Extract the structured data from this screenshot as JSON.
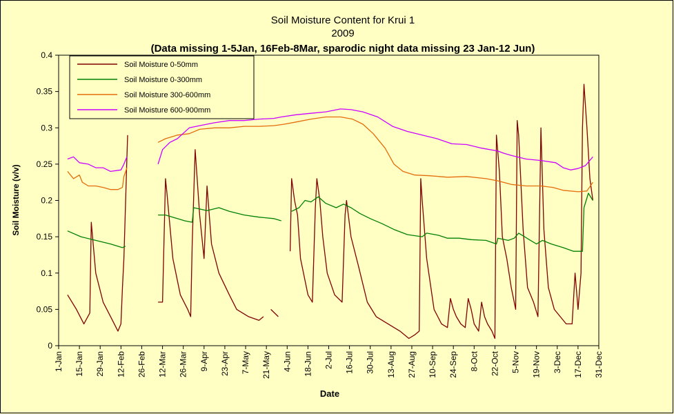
{
  "chart_data": {
    "type": "line",
    "title": "Soil Moisture Content for Krui 1",
    "subtitle": "2009",
    "note": "(Data missing 1-5Jan, 16Feb-8Mar, sparodic night data missing 23 Jan-12 Jun)",
    "xlabel": "Date",
    "ylabel": "Soil Moisture (v/v)",
    "ylim": [
      0,
      0.4
    ],
    "yticks": [
      "0",
      "0.05",
      "0.1",
      "0.15",
      "0.2",
      "0.25",
      "0.3",
      "0.35",
      "0.4"
    ],
    "xticks": [
      "1-Jan",
      "15-Jan",
      "29-Jan",
      "12-Feb",
      "26-Feb",
      "12-Mar",
      "26-Mar",
      "9-Apr",
      "23-Apr",
      "7-May",
      "21-May",
      "4-Jun",
      "18-Jun",
      "2-Jul",
      "16-Jul",
      "30-Jul",
      "13-Aug",
      "27-Aug",
      "10-Sep",
      "24-Sep",
      "8-Oct",
      "22-Oct",
      "5-Nov",
      "19-Nov",
      "3-Dec",
      "17-Dec",
      "31-Dec"
    ],
    "legend_position": "top-left",
    "grid": false,
    "series": [
      {
        "name": "Soil Moisture 0-50mm",
        "color": "#800000",
        "points": [
          [
            6,
            0.07
          ],
          [
            12,
            0.05
          ],
          [
            17,
            0.03
          ],
          [
            21,
            0.045
          ],
          [
            22,
            0.17
          ],
          [
            25,
            0.1
          ],
          [
            30,
            0.06
          ],
          [
            35,
            0.04
          ],
          [
            40,
            0.02
          ],
          [
            42,
            0.03
          ],
          [
            43,
            0.08
          ],
          [
            44,
            0.12
          ],
          [
            46,
            0.26
          ],
          [
            46.5,
            0.29
          ],
          [
            null,
            null
          ],
          [
            67,
            0.06
          ],
          [
            70,
            0.06
          ],
          [
            72,
            0.23
          ],
          [
            73,
            0.21
          ],
          [
            77,
            0.12
          ],
          [
            82,
            0.07
          ],
          [
            87,
            0.05
          ],
          [
            89,
            0.04
          ],
          [
            90,
            0.14
          ],
          [
            92,
            0.27
          ],
          [
            95,
            0.18
          ],
          [
            98,
            0.12
          ],
          [
            100,
            0.22
          ],
          [
            103,
            0.14
          ],
          [
            108,
            0.1
          ],
          [
            115,
            0.07
          ],
          [
            120,
            0.05
          ],
          [
            128,
            0.04
          ],
          [
            135,
            0.035
          ],
          [
            138,
            0.04
          ],
          [
            null,
            null
          ],
          [
            143,
            0.05
          ],
          [
            148,
            0.04
          ],
          [
            null,
            null
          ],
          [
            156,
            0.13
          ],
          [
            157,
            0.23
          ],
          [
            159,
            0.2
          ],
          [
            161,
            0.18
          ],
          [
            163,
            0.12
          ],
          [
            168,
            0.07
          ],
          [
            171,
            0.06
          ],
          [
            173,
            0.19
          ],
          [
            174,
            0.23
          ],
          [
            176,
            0.2
          ],
          [
            178,
            0.15
          ],
          [
            181,
            0.1
          ],
          [
            186,
            0.07
          ],
          [
            191,
            0.06
          ],
          [
            193,
            0.18
          ],
          [
            194,
            0.2
          ],
          [
            197,
            0.15
          ],
          [
            202,
            0.11
          ],
          [
            208,
            0.06
          ],
          [
            214,
            0.04
          ],
          [
            222,
            0.03
          ],
          [
            230,
            0.02
          ],
          [
            236,
            0.01
          ],
          [
            240,
            0.015
          ],
          [
            243,
            0.02
          ],
          [
            244,
            0.23
          ],
          [
            245,
            0.2
          ],
          [
            248,
            0.12
          ],
          [
            253,
            0.05
          ],
          [
            258,
            0.03
          ],
          [
            262,
            0.025
          ],
          [
            264,
            0.065
          ],
          [
            266,
            0.05
          ],
          [
            268,
            0.04
          ],
          [
            271,
            0.03
          ],
          [
            274,
            0.025
          ],
          [
            276,
            0.065
          ],
          [
            278,
            0.05
          ],
          [
            280,
            0.03
          ],
          [
            283,
            0.02
          ],
          [
            285,
            0.06
          ],
          [
            287,
            0.04
          ],
          [
            289,
            0.03
          ],
          [
            292,
            0.02
          ],
          [
            294,
            0.01
          ],
          [
            295,
            0.29
          ],
          [
            297,
            0.24
          ],
          [
            299,
            0.15
          ],
          [
            302,
            0.12
          ],
          [
            305,
            0.08
          ],
          [
            308,
            0.05
          ],
          [
            309,
            0.31
          ],
          [
            310,
            0.29
          ],
          [
            313,
            0.16
          ],
          [
            316,
            0.08
          ],
          [
            320,
            0.06
          ],
          [
            323,
            0.04
          ],
          [
            325,
            0.3
          ],
          [
            327,
            0.16
          ],
          [
            330,
            0.08
          ],
          [
            334,
            0.05
          ],
          [
            338,
            0.04
          ],
          [
            342,
            0.03
          ],
          [
            346,
            0.03
          ],
          [
            348,
            0.1
          ],
          [
            350,
            0.05
          ],
          [
            352,
            0.1
          ],
          [
            353,
            0.3
          ],
          [
            354,
            0.36
          ],
          [
            356,
            0.3
          ],
          [
            358,
            0.23
          ],
          [
            360,
            0.2
          ]
        ]
      },
      {
        "name": "Soil Moisture 0-300mm",
        "color": "#008000",
        "points": [
          [
            6,
            0.158
          ],
          [
            15,
            0.15
          ],
          [
            25,
            0.145
          ],
          [
            35,
            0.14
          ],
          [
            43,
            0.135
          ],
          [
            45,
            0.137
          ],
          [
            null,
            null
          ],
          [
            67,
            0.18
          ],
          [
            72,
            0.18
          ],
          [
            80,
            0.175
          ],
          [
            85,
            0.172
          ],
          [
            90,
            0.17
          ],
          [
            91,
            0.19
          ],
          [
            100,
            0.186
          ],
          [
            108,
            0.19
          ],
          [
            115,
            0.185
          ],
          [
            125,
            0.18
          ],
          [
            135,
            0.177
          ],
          [
            145,
            0.175
          ],
          [
            150,
            0.172
          ],
          [
            null,
            null
          ],
          [
            157,
            0.185
          ],
          [
            162,
            0.19
          ],
          [
            166,
            0.2
          ],
          [
            170,
            0.198
          ],
          [
            175,
            0.205
          ],
          [
            180,
            0.196
          ],
          [
            187,
            0.19
          ],
          [
            192,
            0.195
          ],
          [
            197,
            0.19
          ],
          [
            203,
            0.182
          ],
          [
            210,
            0.175
          ],
          [
            218,
            0.168
          ],
          [
            226,
            0.16
          ],
          [
            235,
            0.153
          ],
          [
            245,
            0.15
          ],
          [
            248,
            0.155
          ],
          [
            256,
            0.152
          ],
          [
            262,
            0.148
          ],
          [
            270,
            0.148
          ],
          [
            278,
            0.146
          ],
          [
            288,
            0.145
          ],
          [
            295,
            0.14
          ],
          [
            296,
            0.148
          ],
          [
            303,
            0.145
          ],
          [
            307,
            0.148
          ],
          [
            310,
            0.155
          ],
          [
            314,
            0.15
          ],
          [
            318,
            0.145
          ],
          [
            322,
            0.14
          ],
          [
            326,
            0.145
          ],
          [
            332,
            0.14
          ],
          [
            340,
            0.135
          ],
          [
            347,
            0.13
          ],
          [
            353,
            0.13
          ],
          [
            354,
            0.19
          ],
          [
            357,
            0.21
          ],
          [
            360,
            0.2
          ]
        ]
      },
      {
        "name": "Soil Moisture 300-600mm",
        "color": "#e46c0a",
        "points": [
          [
            6,
            0.24
          ],
          [
            10,
            0.23
          ],
          [
            14,
            0.235
          ],
          [
            16,
            0.225
          ],
          [
            20,
            0.22
          ],
          [
            25,
            0.22
          ],
          [
            30,
            0.218
          ],
          [
            35,
            0.215
          ],
          [
            40,
            0.215
          ],
          [
            43,
            0.218
          ],
          [
            44,
            0.233
          ],
          [
            46,
            0.245
          ],
          [
            null,
            null
          ],
          [
            67,
            0.28
          ],
          [
            72,
            0.285
          ],
          [
            80,
            0.29
          ],
          [
            88,
            0.292
          ],
          [
            95,
            0.298
          ],
          [
            105,
            0.3
          ],
          [
            115,
            0.3
          ],
          [
            125,
            0.302
          ],
          [
            135,
            0.302
          ],
          [
            145,
            0.303
          ],
          [
            152,
            0.305
          ],
          [
            160,
            0.308
          ],
          [
            170,
            0.312
          ],
          [
            180,
            0.315
          ],
          [
            190,
            0.315
          ],
          [
            198,
            0.312
          ],
          [
            205,
            0.305
          ],
          [
            212,
            0.292
          ],
          [
            220,
            0.272
          ],
          [
            226,
            0.25
          ],
          [
            232,
            0.24
          ],
          [
            240,
            0.235
          ],
          [
            250,
            0.234
          ],
          [
            262,
            0.232
          ],
          [
            275,
            0.233
          ],
          [
            288,
            0.23
          ],
          [
            296,
            0.227
          ],
          [
            305,
            0.222
          ],
          [
            315,
            0.22
          ],
          [
            325,
            0.22
          ],
          [
            333,
            0.218
          ],
          [
            340,
            0.214
          ],
          [
            350,
            0.212
          ],
          [
            356,
            0.213
          ],
          [
            360,
            0.225
          ]
        ]
      },
      {
        "name": "Soil Moisture 600-900mm",
        "color": "#cc00ff",
        "points": [
          [
            6,
            0.257
          ],
          [
            10,
            0.26
          ],
          [
            14,
            0.252
          ],
          [
            20,
            0.25
          ],
          [
            25,
            0.245
          ],
          [
            30,
            0.245
          ],
          [
            35,
            0.24
          ],
          [
            42,
            0.242
          ],
          [
            44,
            0.25
          ],
          [
            46,
            0.26
          ],
          [
            null,
            null
          ],
          [
            67,
            0.25
          ],
          [
            70,
            0.27
          ],
          [
            75,
            0.28
          ],
          [
            80,
            0.285
          ],
          [
            88,
            0.3
          ],
          [
            95,
            0.303
          ],
          [
            105,
            0.307
          ],
          [
            115,
            0.31
          ],
          [
            125,
            0.31
          ],
          [
            135,
            0.312
          ],
          [
            145,
            0.313
          ],
          [
            150,
            0.315
          ],
          [
            160,
            0.318
          ],
          [
            170,
            0.32
          ],
          [
            180,
            0.322
          ],
          [
            190,
            0.326
          ],
          [
            197,
            0.325
          ],
          [
            205,
            0.322
          ],
          [
            215,
            0.315
          ],
          [
            225,
            0.302
          ],
          [
            235,
            0.295
          ],
          [
            245,
            0.29
          ],
          [
            255,
            0.285
          ],
          [
            265,
            0.278
          ],
          [
            275,
            0.277
          ],
          [
            285,
            0.272
          ],
          [
            296,
            0.268
          ],
          [
            300,
            0.265
          ],
          [
            305,
            0.262
          ],
          [
            315,
            0.257
          ],
          [
            325,
            0.255
          ],
          [
            335,
            0.252
          ],
          [
            340,
            0.245
          ],
          [
            345,
            0.242
          ],
          [
            350,
            0.244
          ],
          [
            355,
            0.248
          ],
          [
            360,
            0.26
          ]
        ]
      }
    ]
  }
}
